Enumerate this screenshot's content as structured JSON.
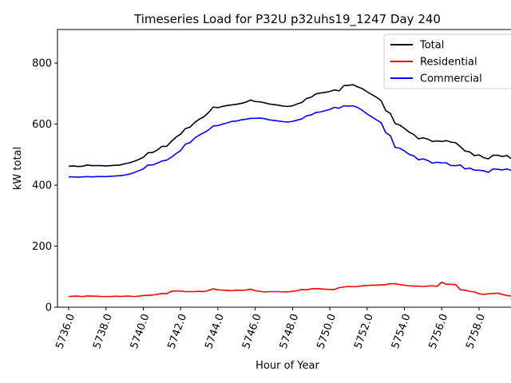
{
  "chart_data": {
    "type": "line",
    "title": "Timeseries Load for P32U p32uhs19_1247  Day 240",
    "xlabel": "Hour of Year",
    "ylabel": "kW total",
    "xlim": [
      5735.4,
      5760.1
    ],
    "ylim": [
      0,
      910
    ],
    "x_ticks": [
      5736,
      5738,
      5740,
      5742,
      5744,
      5746,
      5748,
      5750,
      5752,
      5754,
      5756,
      5758
    ],
    "x_tick_labels": [
      "5736.0",
      "5738.0",
      "5740.0",
      "5742.0",
      "5744.0",
      "5746.0",
      "5748.0",
      "5750.0",
      "5752.0",
      "5754.0",
      "5756.0",
      "5758.0"
    ],
    "y_ticks": [
      0,
      200,
      400,
      600,
      800
    ],
    "y_tick_labels": [
      "0",
      "200",
      "400",
      "600",
      "800"
    ],
    "legend_position": "top-right",
    "x_start": 5736.0,
    "x_step": 0.25,
    "series": [
      {
        "name": "Total",
        "color": "#000000",
        "values": [
          462,
          463,
          461,
          462,
          466,
          464,
          464,
          464,
          463,
          464,
          465,
          466,
          470,
          473,
          478,
          484,
          491,
          506,
          507,
          515,
          527,
          527,
          543,
          557,
          567,
          585,
          590,
          605,
          616,
          624,
          638,
          656,
          654,
          658,
          661,
          663,
          665,
          668,
          672,
          679,
          674,
          673,
          670,
          666,
          664,
          662,
          659,
          658,
          660,
          666,
          671,
          684,
          688,
          699,
          702,
          704,
          707,
          712,
          709,
          726,
          727,
          729,
          722,
          716,
          706,
          697,
          688,
          677,
          644,
          635,
          602,
          597,
          586,
          574,
          566,
          552,
          555,
          551,
          543,
          545,
          543,
          546,
          541,
          539,
          526,
          512,
          509,
          497,
          499,
          490,
          486,
          498,
          498,
          494,
          497,
          486,
          476
        ]
      },
      {
        "name": "Residential",
        "color": "#ff0000",
        "values": [
          35,
          36,
          36,
          35,
          37,
          36,
          36,
          35,
          35,
          35,
          36,
          35,
          36,
          36,
          35,
          36,
          38,
          39,
          40,
          42,
          45,
          44,
          52,
          53,
          53,
          51,
          51,
          51,
          52,
          51,
          55,
          60,
          57,
          56,
          55,
          54,
          56,
          55,
          56,
          59,
          54,
          52,
          50,
          51,
          51,
          51,
          50,
          50,
          52,
          54,
          58,
          57,
          60,
          61,
          60,
          59,
          58,
          58,
          64,
          66,
          68,
          67,
          68,
          70,
          71,
          72,
          72,
          73,
          74,
          77,
          77,
          74,
          72,
          70,
          69,
          69,
          68,
          69,
          70,
          68,
          82,
          75,
          75,
          74,
          57,
          56,
          52,
          50,
          44,
          42,
          44,
          45,
          46,
          42,
          38,
          37,
          36
        ]
      },
      {
        "name": "Commercial",
        "color": "#0000ff",
        "values": [
          427,
          427,
          426,
          427,
          428,
          427,
          428,
          428,
          428,
          429,
          430,
          431,
          433,
          436,
          441,
          447,
          453,
          466,
          466,
          472,
          479,
          482,
          491,
          503,
          513,
          534,
          539,
          554,
          564,
          572,
          581,
          594,
          595,
          600,
          604,
          609,
          610,
          614,
          616,
          619,
          619,
          620,
          618,
          614,
          612,
          610,
          608,
          607,
          609,
          613,
          617,
          627,
          630,
          638,
          640,
          644,
          648,
          655,
          652,
          660,
          659,
          660,
          654,
          645,
          633,
          624,
          614,
          605,
          572,
          562,
          524,
          521,
          512,
          501,
          496,
          483,
          486,
          481,
          472,
          475,
          473,
          473,
          464,
          464,
          466,
          453,
          456,
          449,
          449,
          447,
          442,
          453,
          452,
          450,
          453,
          448,
          439
        ]
      }
    ]
  }
}
